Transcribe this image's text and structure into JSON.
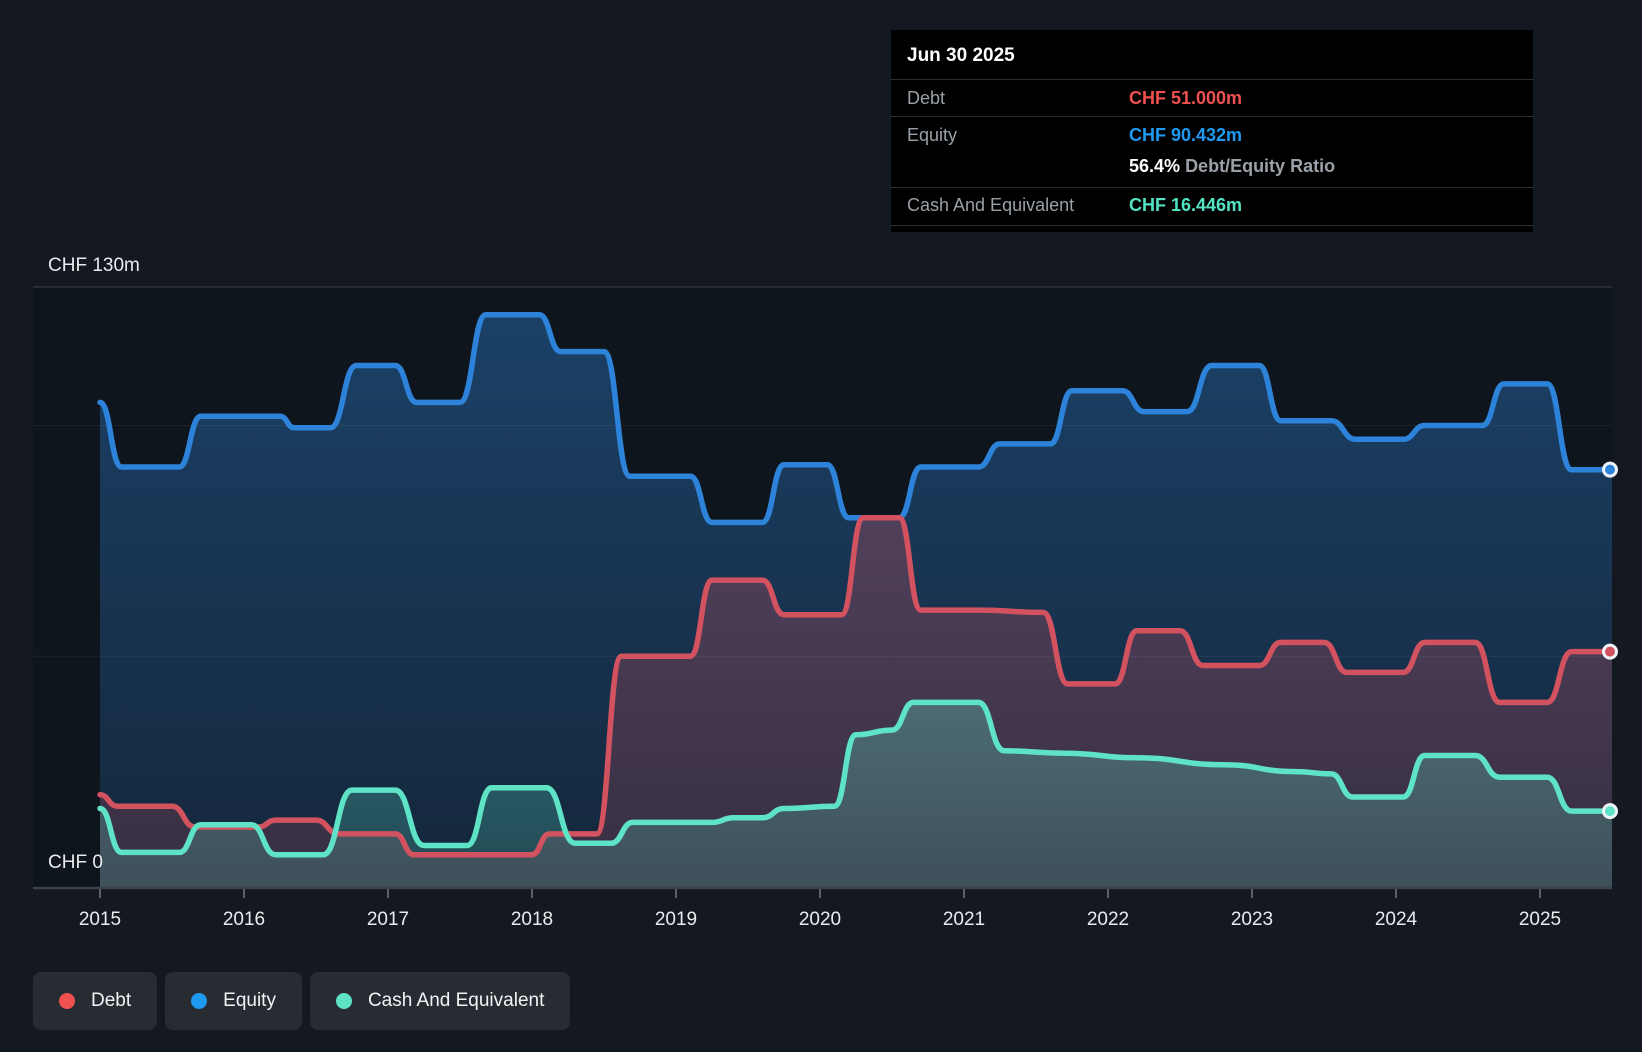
{
  "tooltip": {
    "title": "Jun 30 2025",
    "debt_label": "Debt",
    "debt_value": "CHF 51.000m",
    "equity_label": "Equity",
    "equity_value": "CHF 90.432m",
    "ratio_value": "56.4%",
    "ratio_label": "Debt/Equity Ratio",
    "cash_label": "Cash And Equivalent",
    "cash_value": "CHF 16.446m"
  },
  "legend": {
    "debt": "Debt",
    "equity": "Equity",
    "cash": "Cash And Equivalent"
  },
  "colors": {
    "page_bg": "#141921",
    "plot_bg": "#0f151c",
    "debt_line": "#d2525f",
    "equity_line": "#2d83d9",
    "cash_line": "#5fe3c6",
    "debt_bright": "#f0504f",
    "equity_bright": "#1e9bf0",
    "cash_bright": "#52e3c2",
    "axis_line": "#3c424a",
    "tick": "#5a6067",
    "grid": "rgba(255,255,255,0.06)",
    "grid_top": "rgba(255,255,255,0.13)",
    "label": "#e9ebed"
  },
  "chart_data": {
    "type": "area",
    "title": "Debt / Equity / Cash history",
    "x_start": 2015,
    "x_end": 2025.5,
    "ylim": [
      0,
      130
    ],
    "y_top_label": "CHF 130m",
    "y_bottom_label": "CHF 0",
    "grid_values": [
      0,
      50,
      100,
      130
    ],
    "x_tick_labels": [
      "2015",
      "2016",
      "2017",
      "2018",
      "2019",
      "2020",
      "2021",
      "2022",
      "2023",
      "2024",
      "2025"
    ],
    "legend_position": "bottom-left",
    "series": [
      {
        "name": "Equity",
        "color_key": "equity_line",
        "final_value_label": "CHF 90.432m",
        "points": [
          [
            2015.0,
            105
          ],
          [
            2015.15,
            91
          ],
          [
            2015.55,
            91
          ],
          [
            2015.7,
            102
          ],
          [
            2016.25,
            102
          ],
          [
            2016.35,
            99.5
          ],
          [
            2016.6,
            99.5
          ],
          [
            2016.78,
            113
          ],
          [
            2017.05,
            113
          ],
          [
            2017.2,
            105
          ],
          [
            2017.5,
            105
          ],
          [
            2017.68,
            124
          ],
          [
            2018.05,
            124
          ],
          [
            2018.2,
            116
          ],
          [
            2018.5,
            116
          ],
          [
            2018.68,
            89
          ],
          [
            2019.1,
            89
          ],
          [
            2019.25,
            79
          ],
          [
            2019.6,
            79
          ],
          [
            2019.75,
            91.5
          ],
          [
            2020.05,
            91.5
          ],
          [
            2020.2,
            80
          ],
          [
            2020.55,
            80
          ],
          [
            2020.7,
            91
          ],
          [
            2021.1,
            91
          ],
          [
            2021.25,
            96
          ],
          [
            2021.6,
            96
          ],
          [
            2021.75,
            107.5
          ],
          [
            2022.1,
            107.5
          ],
          [
            2022.25,
            103
          ],
          [
            2022.55,
            103
          ],
          [
            2022.72,
            113
          ],
          [
            2023.05,
            113
          ],
          [
            2023.2,
            101
          ],
          [
            2023.55,
            101
          ],
          [
            2023.72,
            97
          ],
          [
            2024.05,
            97
          ],
          [
            2024.2,
            100
          ],
          [
            2024.6,
            100
          ],
          [
            2024.75,
            109
          ],
          [
            2025.05,
            109
          ],
          [
            2025.22,
            90.4
          ],
          [
            2025.5,
            90.432
          ]
        ]
      },
      {
        "name": "Debt",
        "color_key": "debt_line",
        "final_value_label": "CHF 51.000m",
        "points": [
          [
            2015.0,
            20
          ],
          [
            2015.12,
            17.5
          ],
          [
            2015.5,
            17.5
          ],
          [
            2015.66,
            13
          ],
          [
            2016.1,
            13
          ],
          [
            2016.22,
            14.5
          ],
          [
            2016.5,
            14.5
          ],
          [
            2016.66,
            11.5
          ],
          [
            2017.05,
            11.5
          ],
          [
            2017.18,
            7
          ],
          [
            2018.0,
            7
          ],
          [
            2018.12,
            11.5
          ],
          [
            2018.45,
            11.5
          ],
          [
            2018.62,
            50
          ],
          [
            2019.1,
            50
          ],
          [
            2019.25,
            66.5
          ],
          [
            2019.6,
            66.5
          ],
          [
            2019.75,
            59
          ],
          [
            2020.15,
            59
          ],
          [
            2020.3,
            80
          ],
          [
            2020.55,
            80
          ],
          [
            2020.7,
            60
          ],
          [
            2021.1,
            60
          ],
          [
            2021.55,
            59.5
          ],
          [
            2021.72,
            44
          ],
          [
            2022.05,
            44
          ],
          [
            2022.2,
            55.5
          ],
          [
            2022.5,
            55.5
          ],
          [
            2022.66,
            48
          ],
          [
            2023.05,
            48
          ],
          [
            2023.2,
            53
          ],
          [
            2023.5,
            53
          ],
          [
            2023.66,
            46.5
          ],
          [
            2024.05,
            46.5
          ],
          [
            2024.2,
            53
          ],
          [
            2024.55,
            53
          ],
          [
            2024.72,
            40
          ],
          [
            2025.05,
            40
          ],
          [
            2025.22,
            51
          ],
          [
            2025.5,
            51.0
          ]
        ]
      },
      {
        "name": "Cash And Equivalent",
        "color_key": "cash_line",
        "final_value_label": "CHF 16.446m",
        "points": [
          [
            2015.0,
            17
          ],
          [
            2015.15,
            7.5
          ],
          [
            2015.55,
            7.5
          ],
          [
            2015.7,
            13.5
          ],
          [
            2016.05,
            13.5
          ],
          [
            2016.22,
            7
          ],
          [
            2016.55,
            7
          ],
          [
            2016.75,
            21
          ],
          [
            2017.05,
            21
          ],
          [
            2017.25,
            9
          ],
          [
            2017.55,
            9
          ],
          [
            2017.72,
            21.5
          ],
          [
            2018.1,
            21.5
          ],
          [
            2018.3,
            9.5
          ],
          [
            2018.55,
            9.5
          ],
          [
            2018.7,
            14
          ],
          [
            2019.25,
            14
          ],
          [
            2019.4,
            15
          ],
          [
            2019.6,
            15
          ],
          [
            2019.75,
            17
          ],
          [
            2020.1,
            17.5
          ],
          [
            2020.25,
            33
          ],
          [
            2020.5,
            34
          ],
          [
            2020.65,
            40
          ],
          [
            2021.1,
            40
          ],
          [
            2021.28,
            29.5
          ],
          [
            2021.7,
            29
          ],
          [
            2022.2,
            28
          ],
          [
            2022.8,
            26.5
          ],
          [
            2023.3,
            25
          ],
          [
            2023.55,
            24.5
          ],
          [
            2023.7,
            19.5
          ],
          [
            2024.05,
            19.5
          ],
          [
            2024.2,
            28.5
          ],
          [
            2024.55,
            28.5
          ],
          [
            2024.72,
            23.8
          ],
          [
            2025.05,
            23.8
          ],
          [
            2025.22,
            16.446
          ],
          [
            2025.5,
            16.446
          ]
        ]
      }
    ]
  }
}
